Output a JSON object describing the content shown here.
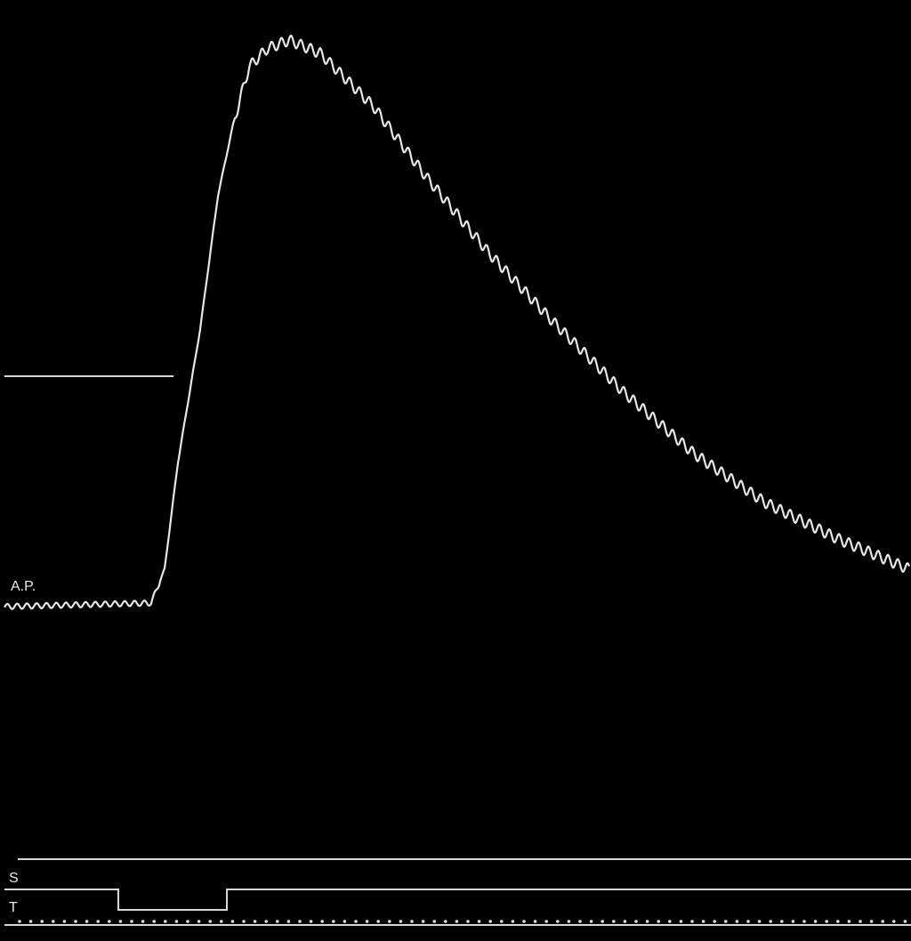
{
  "labels": {
    "arterial_pressure": "A.P.",
    "signal": "S",
    "time": "T"
  }
}
